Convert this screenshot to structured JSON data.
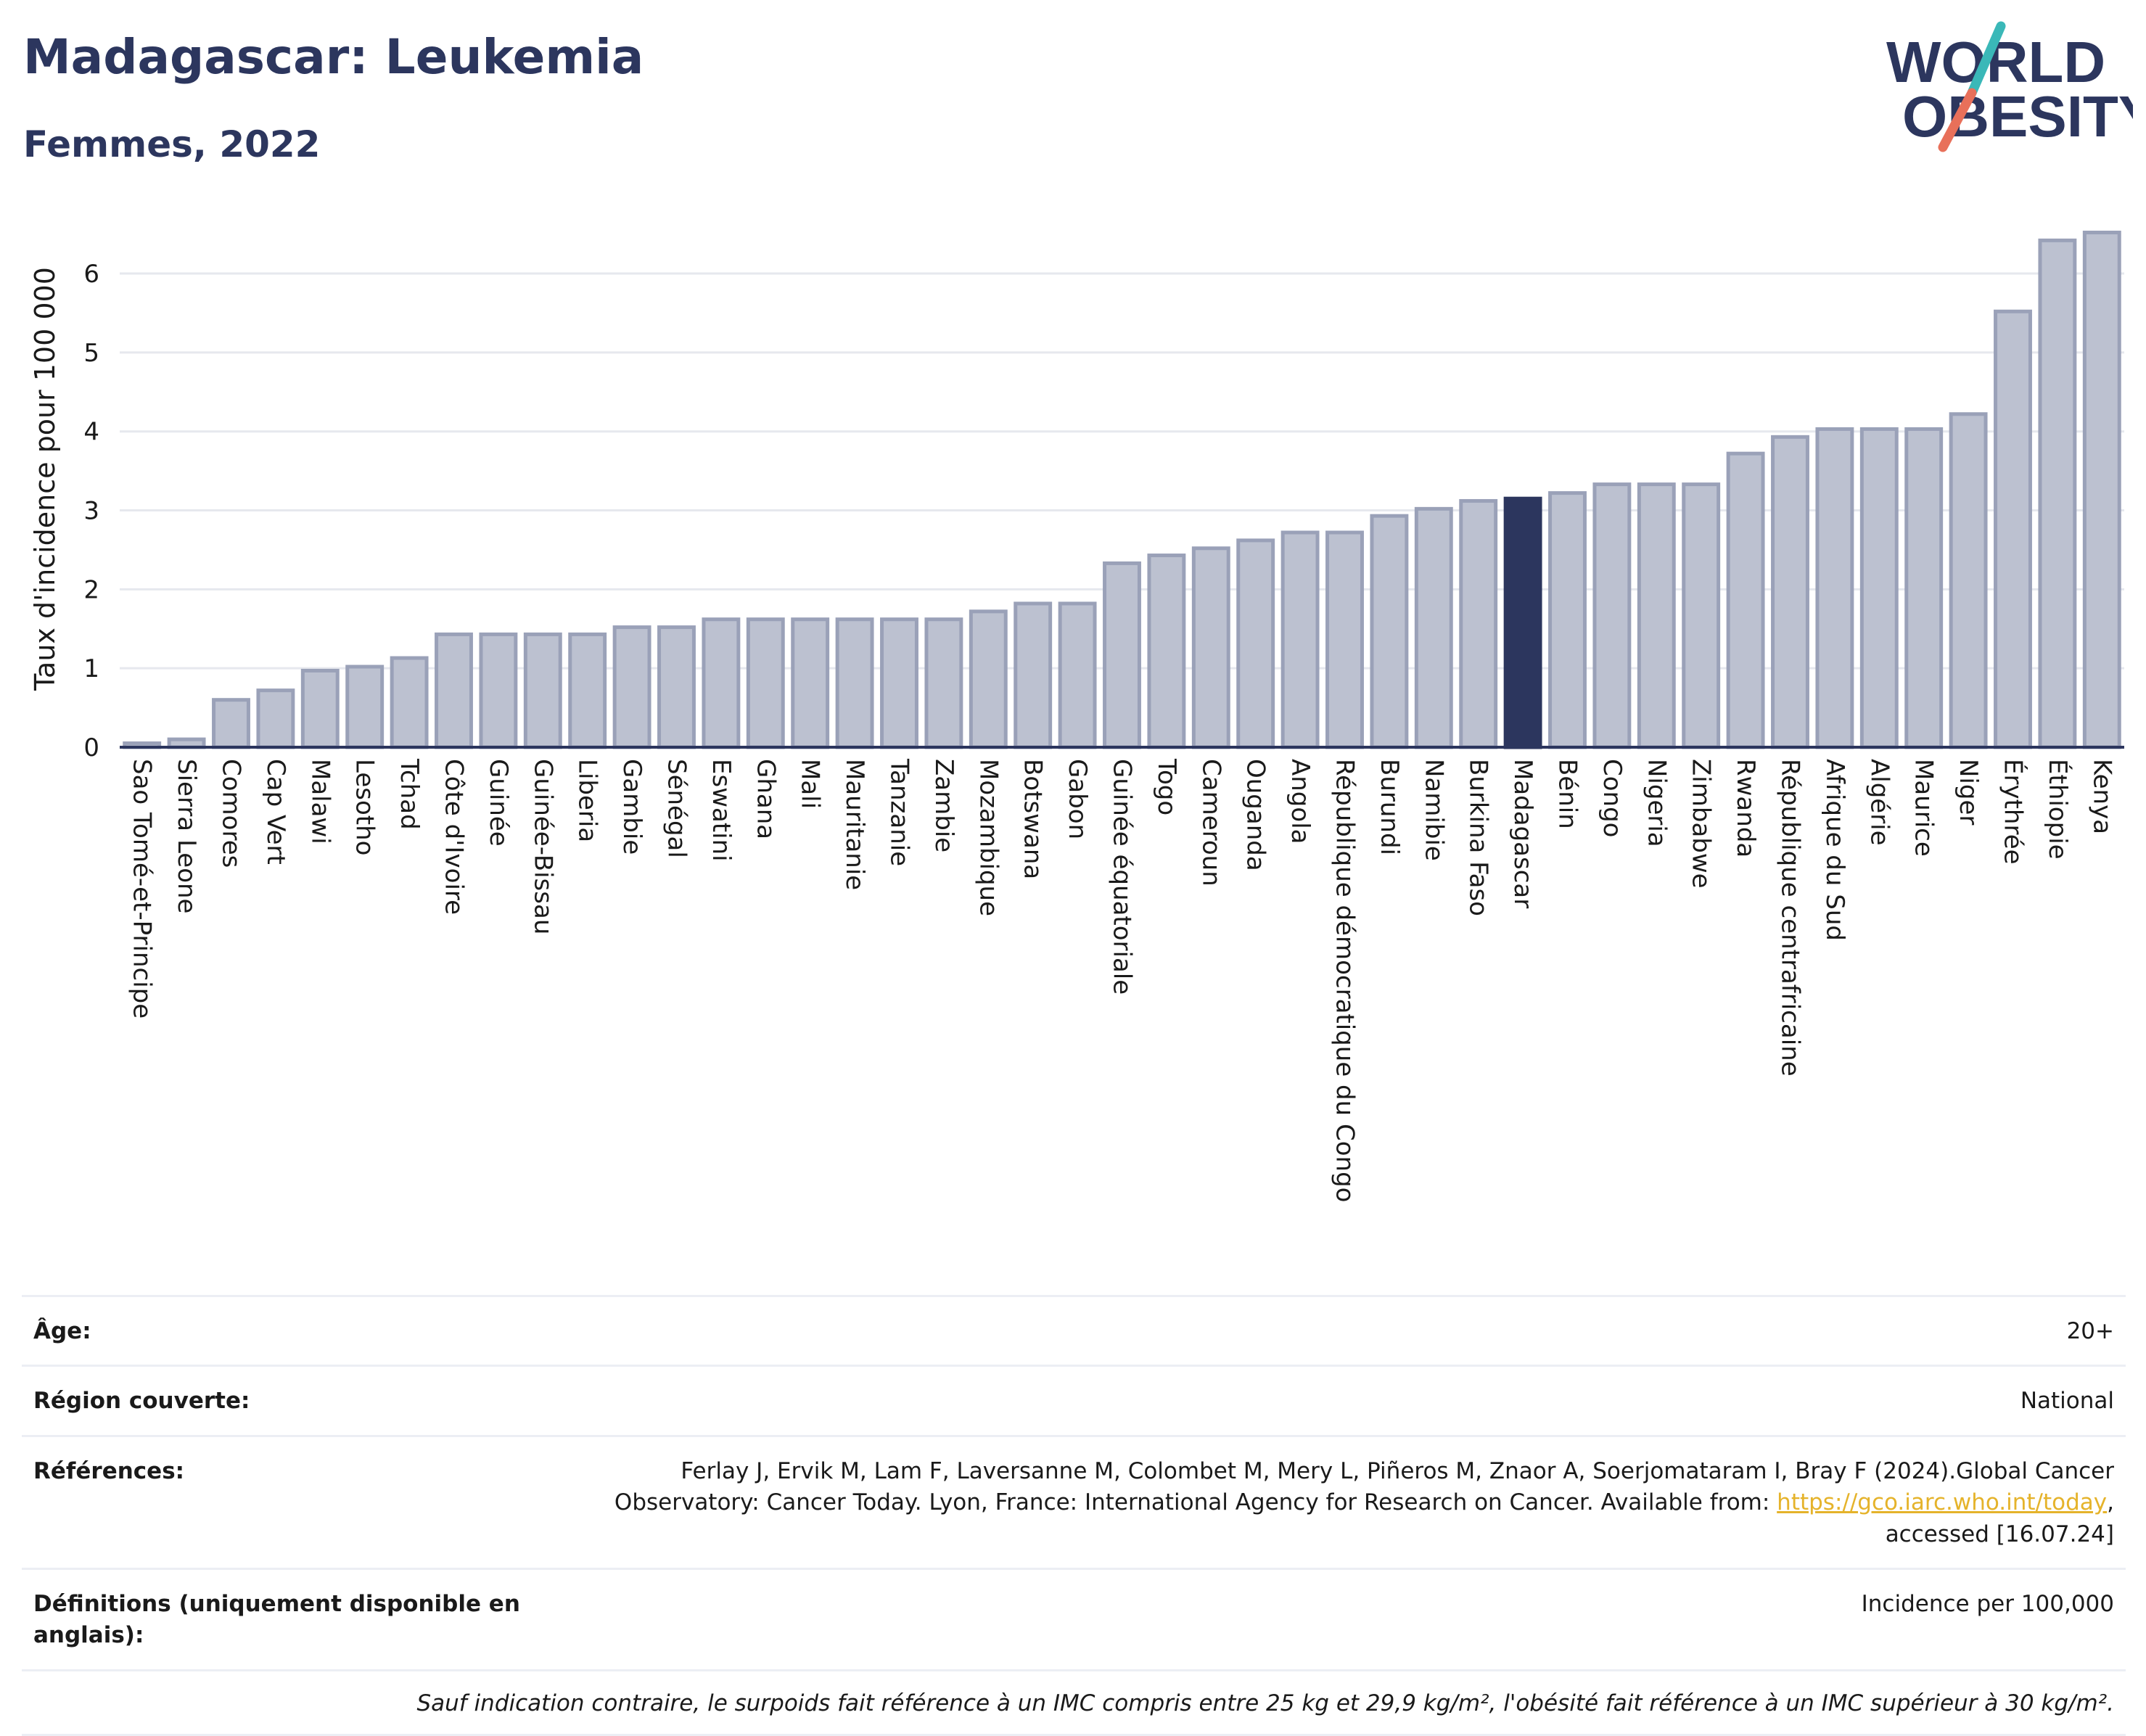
{
  "header": {
    "title": "Madagascar: Leukemia",
    "subtitle": "Femmes, 2022"
  },
  "logo": {
    "line1": "WORLD",
    "line2": "OBESITY",
    "colors": {
      "text": "#2c365e",
      "slash_teal": "#3ab8b8",
      "slash_coral": "#e8705a"
    }
  },
  "chart_data": {
    "type": "bar",
    "title": "Madagascar: Leukemia",
    "subtitle": "Femmes, 2022",
    "ylabel": "Taux d'incidence pour 100 000",
    "xlabel": "",
    "ylim": [
      0,
      6.8
    ],
    "yticks": [
      0,
      1,
      2,
      3,
      4,
      5,
      6
    ],
    "grid": true,
    "highlight": "Madagascar",
    "colors": {
      "bar": "#bcc1d0",
      "bar_edge": "#9aa1b8",
      "highlight": "#2c365e",
      "axis": "#2c365e",
      "grid": "#e6e8ee"
    },
    "categories": [
      "Sao Tomé-et-Principe",
      "Sierra Leone",
      "Comores",
      "Cap Vert",
      "Malawi",
      "Lesotho",
      "Tchad",
      "Côte d'Ivoire",
      "Guinée",
      "Guinée-Bissau",
      "Liberia",
      "Gambie",
      "Sénégal",
      "Eswatini",
      "Ghana",
      "Mali",
      "Mauritanie",
      "Tanzanie",
      "Zambie",
      "Mozambique",
      "Botswana",
      "Gabon",
      "Guinée équatoriale",
      "Togo",
      "Cameroun",
      "Ouganda",
      "Angola",
      "République démocratique du Congo",
      "Burundi",
      "Namibie",
      "Burkina Faso",
      "Madagascar",
      "Bénin",
      "Congo",
      "Nigeria",
      "Zimbabwe",
      "Rwanda",
      "République centrafricaine",
      "Afrique du Sud",
      "Algérie",
      "Maurice",
      "Niger",
      "Érythrée",
      "Éthiopie",
      "Kenya"
    ],
    "values": [
      0.05,
      0.1,
      0.6,
      0.72,
      0.97,
      1.02,
      1.13,
      1.43,
      1.43,
      1.43,
      1.43,
      1.52,
      1.52,
      1.62,
      1.62,
      1.62,
      1.62,
      1.62,
      1.62,
      1.72,
      1.82,
      1.82,
      2.33,
      2.43,
      2.52,
      2.62,
      2.72,
      2.72,
      2.93,
      3.02,
      3.12,
      3.15,
      3.22,
      3.33,
      3.33,
      3.33,
      3.72,
      3.93,
      4.03,
      4.03,
      4.03,
      4.22,
      5.52,
      6.42,
      6.52
    ]
  },
  "info": {
    "age_label": "Âge:",
    "age_value": "20+",
    "region_label": "Région couverte:",
    "region_value": "National",
    "refs_label": "Références:",
    "refs_text_1": "Ferlay J, Ervik M, Lam F, Laversanne M, Colombet M, Mery L, Piñeros M, Znaor A, Soerjomataram I, Bray F (2024).Global Cancer Observatory: Cancer Today. Lyon, France: International Agency for Research on Cancer. Available from: ",
    "refs_link": "https://gco.iarc.who.int/today",
    "refs_text_2": ", accessed [16.07.24]",
    "defs_label": "Définitions (uniquement disponible en anglais):",
    "defs_value": "Incidence per 100,000",
    "note": "Sauf indication contraire, le surpoids fait référence à un IMC compris entre 25 kg et 29,9 kg/m², l'obésité fait référence à un IMC supérieur à 30 kg/m²."
  }
}
